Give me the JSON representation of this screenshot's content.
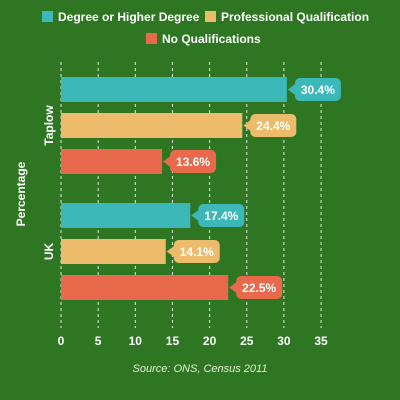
{
  "chart_data": {
    "type": "bar",
    "orientation": "horizontal",
    "categories": [
      "Taplow",
      "UK"
    ],
    "series": [
      {
        "name": "Degree or Higher Degree",
        "color": "#3cb8b8",
        "values": [
          30.4,
          17.4
        ]
      },
      {
        "name": "Professional Qualification",
        "color": "#ecbb6b",
        "values": [
          24.4,
          14.1
        ]
      },
      {
        "name": "No Qualifications",
        "color": "#e8694c",
        "values": [
          13.6,
          22.5
        ]
      }
    ],
    "value_suffix": "%",
    "ylabel": "Percentage",
    "xlim": [
      0,
      35
    ],
    "xticks": [
      0,
      5,
      10,
      15,
      20,
      25,
      30,
      35
    ],
    "grid": "vertical dashed",
    "legend": "top",
    "source": "Source: ONS, Census 2011"
  }
}
